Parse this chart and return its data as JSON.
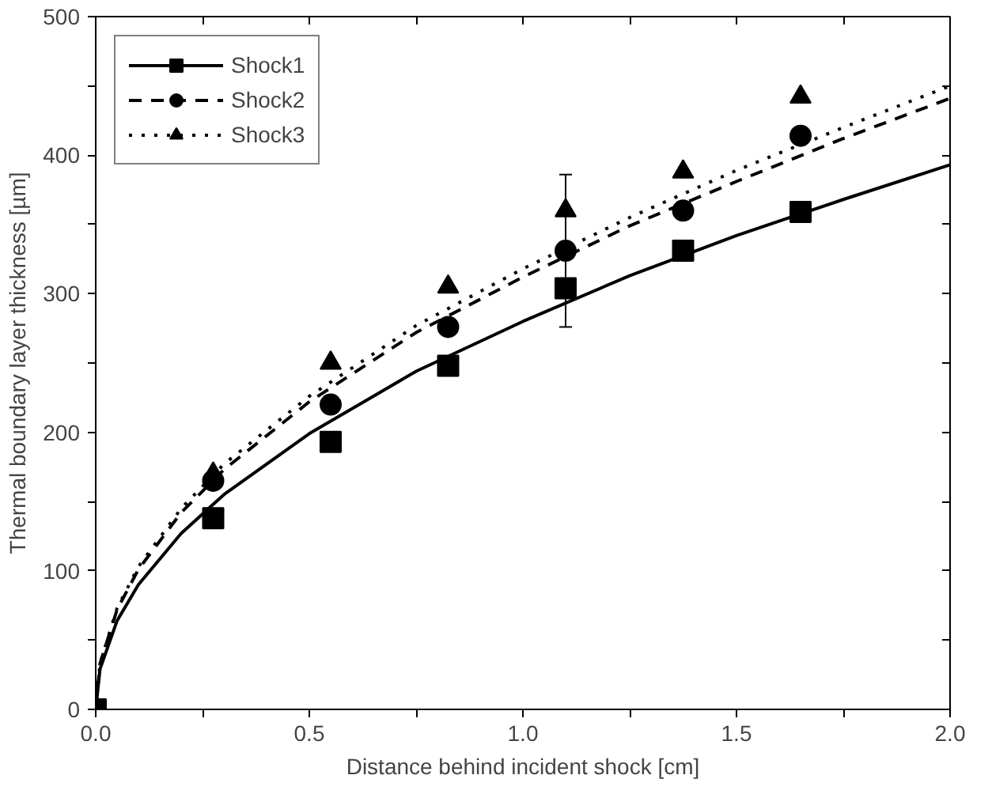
{
  "chart_data": {
    "type": "scatter",
    "xlabel": "Distance behind incident shock [cm]",
    "ylabel": "Thermal boundary layer thickness [µm]",
    "xlim": [
      0,
      2.0
    ],
    "ylim": [
      0,
      500
    ],
    "xticks": [
      {
        "value": 0,
        "label": "0.0"
      },
      {
        "value": 0.25,
        "label": null
      },
      {
        "value": 0.5,
        "label": "0.5"
      },
      {
        "value": 0.75,
        "label": null
      },
      {
        "value": 1.0,
        "label": "1.0"
      },
      {
        "value": 1.25,
        "label": null
      },
      {
        "value": 1.5,
        "label": "1.5"
      },
      {
        "value": 1.75,
        "label": null
      },
      {
        "value": 2.0,
        "label": "2.0"
      }
    ],
    "yticks": [
      0,
      {
        "value": 50,
        "label": null
      },
      100,
      {
        "value": 150,
        "label": null
      },
      200,
      {
        "value": 250,
        "label": null
      },
      300,
      {
        "value": 350,
        "label": null
      },
      400,
      {
        "value": 450,
        "label": null
      },
      500
    ],
    "grid": false,
    "legend": "top left",
    "series": [
      {
        "type": "line",
        "line_style": "solid",
        "color": "#000000",
        "x": [
          0,
          0.01,
          0.05,
          0.1,
          0.2,
          0.3,
          0.5,
          0.75,
          1.0,
          1.25,
          1.5,
          1.75,
          2.0
        ],
        "values": [
          0,
          29,
          64,
          90,
          127,
          155,
          199,
          244,
          280,
          313,
          342,
          368,
          393
        ]
      },
      {
        "type": "line",
        "line_style": "dashed",
        "color": "#000000",
        "x": [
          0,
          0.01,
          0.05,
          0.1,
          0.2,
          0.3,
          0.5,
          0.75,
          1.0,
          1.25,
          1.5,
          1.75,
          2.0
        ],
        "values": [
          0,
          33,
          72,
          101,
          142,
          173,
          222,
          272,
          312,
          349,
          381,
          412,
          441
        ]
      },
      {
        "type": "line",
        "line_style": "dotted",
        "color": "#000000",
        "x": [
          0,
          0.01,
          0.05,
          0.1,
          0.2,
          0.3,
          0.5,
          0.75,
          1.0,
          1.25,
          1.5,
          1.75,
          2.0
        ],
        "values": [
          0,
          33,
          73,
          103,
          145,
          177,
          226,
          277,
          318,
          355,
          389,
          420,
          450
        ]
      },
      {
        "name": "Shock1",
        "marker": "square",
        "color": "#000000",
        "x": [
          0,
          0.275,
          0.55,
          0.825,
          1.1,
          1.375,
          1.65
        ],
        "values": [
          0,
          138,
          193,
          248,
          304,
          331,
          359
        ]
      },
      {
        "name": "Shock2",
        "marker": "circle",
        "color": "#000000",
        "x": [
          0.275,
          0.55,
          0.825,
          1.1,
          1.375,
          1.65
        ],
        "values": [
          165,
          220,
          276,
          331,
          360,
          414
        ],
        "errors": [
          null,
          null,
          null,
          55,
          null,
          null
        ]
      },
      {
        "name": "Shock3",
        "marker": "triangle",
        "color": "#000000",
        "x": [
          0.275,
          0.55,
          0.825,
          1.1,
          1.375,
          1.65
        ],
        "values": [
          170,
          250,
          305,
          360,
          388,
          442
        ]
      }
    ]
  }
}
